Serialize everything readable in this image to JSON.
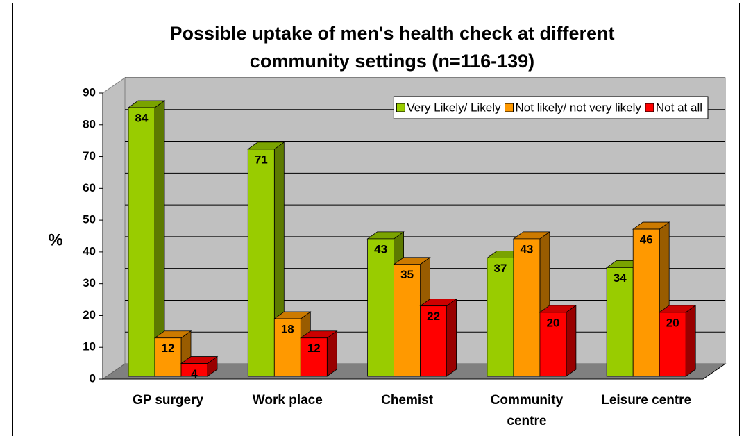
{
  "chart_data": {
    "type": "bar3d",
    "title": "Possible uptake of men's health check at different community settings (n=116-139)",
    "ylabel": "%",
    "categories": [
      "GP surgery",
      "Work place",
      "Chemist",
      "Community centre",
      "Leisure centre"
    ],
    "series": [
      {
        "name": "Very Likely/ Likely",
        "color": "#99cc00",
        "values": [
          84,
          71,
          43,
          37,
          34
        ]
      },
      {
        "name": "Not likely/ not very likely",
        "color": "#ff9900",
        "values": [
          12,
          18,
          35,
          43,
          46
        ]
      },
      {
        "name": "Not at all",
        "color": "#ff0000",
        "values": [
          4,
          12,
          22,
          20,
          20
        ]
      }
    ],
    "ylim": [
      0,
      90
    ],
    "yticks": [
      0,
      10,
      20,
      30,
      40,
      50,
      60,
      70,
      80,
      90
    ],
    "grid": true,
    "legend": "upper right"
  }
}
